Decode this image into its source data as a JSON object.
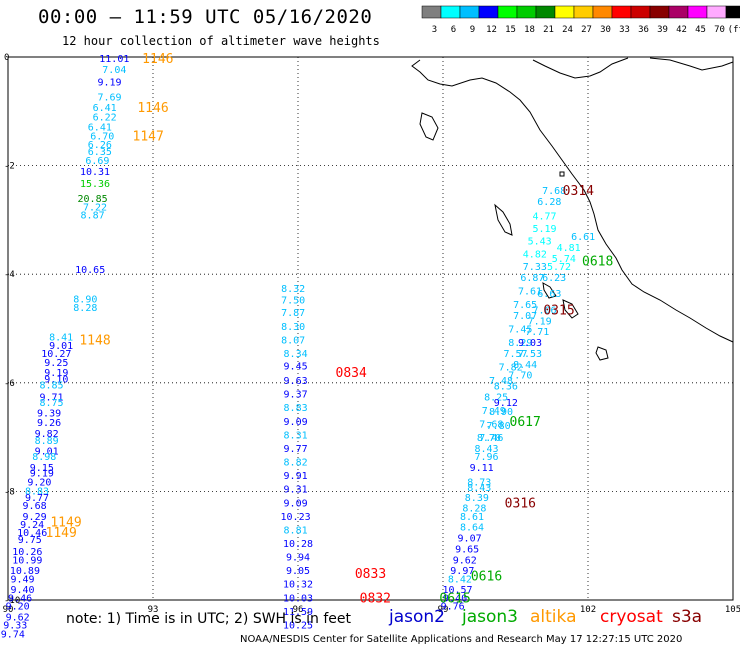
{
  "title": "00:00 — 11:59 UTC 05/16/2020",
  "subtitle": "12 hour collection of altimeter wave heights",
  "note": "note: 1) Time is in UTC; 2) SWH is in feet",
  "credit": "NOAA/NESDIS Center for Satellite Applications and Research   May 17 12:27:15 UTC 2020",
  "color_scale": {
    "labels": [
      "3",
      "6",
      "9",
      "12",
      "15",
      "18",
      "21",
      "24",
      "27",
      "30",
      "33",
      "36",
      "39",
      "42",
      "45",
      "70",
      "(ft)"
    ],
    "colors": [
      "#7f7f7f",
      "#00ffff",
      "#00bfff",
      "#0000ff",
      "#00ff00",
      "#00cc00",
      "#008800",
      "#ffff00",
      "#ffcc00",
      "#ff8800",
      "#ff0000",
      "#cc0000",
      "#880000",
      "#aa0066",
      "#ff00ff",
      "#ffaaff",
      "#000000"
    ]
  },
  "axes": {
    "x_ticks": [
      "90",
      "93",
      "96",
      "99",
      "102",
      "105"
    ],
    "y_ticks": [
      "0",
      "-2",
      "-4",
      "-6",
      "-8",
      "-10"
    ]
  },
  "satellites": [
    {
      "name": "jason2",
      "color": "#0000cc"
    },
    {
      "name": "jason3",
      "color": "#00aa00"
    },
    {
      "name": "altika",
      "color": "#ff9900"
    },
    {
      "name": "cryosat",
      "color": "#ff0000"
    },
    {
      "name": "s3a",
      "color": "#880000"
    }
  ],
  "time_labels": [
    {
      "text": "1146",
      "lon": 93.1,
      "lat": -0.02,
      "color": "#ff9900"
    },
    {
      "text": "1146",
      "lon": 93.0,
      "lat": -0.92,
      "color": "#ff9900"
    },
    {
      "text": "1147",
      "lon": 92.9,
      "lat": -1.45,
      "color": "#ff9900"
    },
    {
      "text": "1148",
      "lon": 91.8,
      "lat": -5.2,
      "color": "#ff9900"
    },
    {
      "text": "1149",
      "lon": 91.2,
      "lat": -8.55,
      "color": "#ff9900"
    },
    {
      "text": "1149",
      "lon": 91.1,
      "lat": -8.75,
      "color": "#ff9900"
    },
    {
      "text": "0314",
      "lon": 101.8,
      "lat": -2.45,
      "color": "#880000"
    },
    {
      "text": "0315",
      "lon": 101.4,
      "lat": -4.65,
      "color": "#880000"
    },
    {
      "text": "0316",
      "lon": 100.6,
      "lat": -8.2,
      "color": "#880000"
    },
    {
      "text": "0618",
      "lon": 102.2,
      "lat": -3.75,
      "color": "#00aa00"
    },
    {
      "text": "0617",
      "lon": 100.7,
      "lat": -6.7,
      "color": "#00aa00"
    },
    {
      "text": "0616",
      "lon": 99.9,
      "lat": -9.55,
      "color": "#00aa00"
    },
    {
      "text": "0615",
      "lon": 99.25,
      "lat": -9.95,
      "color": "#00aa00"
    },
    {
      "text": "0834",
      "lon": 97.1,
      "lat": -5.8,
      "color": "#ff0000"
    },
    {
      "text": "0833",
      "lon": 97.5,
      "lat": -9.5,
      "color": "#ff0000"
    },
    {
      "text": "0832",
      "lon": 97.6,
      "lat": -9.95,
      "color": "#ff0000"
    }
  ],
  "tracks": [
    {
      "name": "altika-west",
      "points": [
        {
          "v": "11.01",
          "lon": 92.2,
          "lat": -0.02
        },
        {
          "v": "7.04",
          "lon": 92.2,
          "lat": -0.22
        },
        {
          "v": "9.19",
          "lon": 92.1,
          "lat": -0.45
        },
        {
          "v": "7.69",
          "lon": 92.1,
          "lat": -0.73
        },
        {
          "v": "6.41",
          "lon": 92.0,
          "lat": -0.92
        },
        {
          "v": "6.22",
          "lon": 92.0,
          "lat": -1.1
        },
        {
          "v": "6.41",
          "lon": 91.9,
          "lat": -1.28
        },
        {
          "v": "6.70",
          "lon": 91.95,
          "lat": -1.45
        },
        {
          "v": "6.26",
          "lon": 91.9,
          "lat": -1.6
        },
        {
          "v": "6.35",
          "lon": 91.9,
          "lat": -1.73
        },
        {
          "v": "6.69",
          "lon": 91.85,
          "lat": -1.9
        },
        {
          "v": "10.31",
          "lon": 91.8,
          "lat": -2.1
        },
        {
          "v": "15.36",
          "lon": 91.8,
          "lat": -2.32
        },
        {
          "v": "20.85",
          "lon": 91.75,
          "lat": -2.6
        },
        {
          "v": "7.22",
          "lon": 91.8,
          "lat": -2.75
        },
        {
          "v": "8.87",
          "lon": 91.75,
          "lat": -2.9
        },
        {
          "v": "10.65",
          "lon": 91.7,
          "lat": -3.9
        },
        {
          "v": "8.90",
          "lon": 91.6,
          "lat": -4.45
        },
        {
          "v": "8.28",
          "lon": 91.6,
          "lat": -4.6
        },
        {
          "v": "8.41",
          "lon": 91.1,
          "lat": -5.15
        },
        {
          "v": "9.01",
          "lon": 91.1,
          "lat": -5.3
        },
        {
          "v": "10.27",
          "lon": 91.0,
          "lat": -5.45
        },
        {
          "v": "9.25",
          "lon": 91.0,
          "lat": -5.62
        },
        {
          "v": "9.19",
          "lon": 91.0,
          "lat": -5.8
        },
        {
          "v": "9.10",
          "lon": 91.0,
          "lat": -5.92
        },
        {
          "v": "8.85",
          "lon": 90.9,
          "lat": -6.03
        },
        {
          "v": "9.71",
          "lon": 90.9,
          "lat": -6.25
        },
        {
          "v": "8.75",
          "lon": 90.9,
          "lat": -6.35
        },
        {
          "v": "9.39",
          "lon": 90.85,
          "lat": -6.55
        },
        {
          "v": "9.26",
          "lon": 90.85,
          "lat": -6.72
        },
        {
          "v": "9.82",
          "lon": 90.8,
          "lat": -6.92
        },
        {
          "v": "8.89",
          "lon": 90.8,
          "lat": -7.05
        },
        {
          "v": "9.01",
          "lon": 90.8,
          "lat": -7.25
        },
        {
          "v": "8.98",
          "lon": 90.75,
          "lat": -7.35
        },
        {
          "v": "9.15",
          "lon": 90.7,
          "lat": -7.55
        },
        {
          "v": "9.19",
          "lon": 90.7,
          "lat": -7.65
        },
        {
          "v": "9.20",
          "lon": 90.65,
          "lat": -7.82
        },
        {
          "v": "8.83",
          "lon": 90.6,
          "lat": -7.98
        },
        {
          "v": "9.77",
          "lon": 90.6,
          "lat": -8.1
        },
        {
          "v": "9.68",
          "lon": 90.55,
          "lat": -8.25
        },
        {
          "v": "9.29",
          "lon": 90.55,
          "lat": -8.45
        },
        {
          "v": "9.24",
          "lon": 90.5,
          "lat": -8.6
        },
        {
          "v": "10.46",
          "lon": 90.5,
          "lat": -8.75
        },
        {
          "v": "9.75",
          "lon": 90.45,
          "lat": -8.88
        },
        {
          "v": "10.26",
          "lon": 90.4,
          "lat": -9.1
        },
        {
          "v": "10.99",
          "lon": 90.4,
          "lat": -9.25
        },
        {
          "v": "10.89",
          "lon": 90.35,
          "lat": -9.45
        },
        {
          "v": "9.49",
          "lon": 90.3,
          "lat": -9.6
        },
        {
          "v": "9.40",
          "lon": 90.3,
          "lat": -9.8
        },
        {
          "v": "9.46",
          "lon": 90.25,
          "lat": -9.95
        },
        {
          "v": "9.20",
          "lon": 90.2,
          "lat": -10.1
        },
        {
          "v": "9.62",
          "lon": 90.2,
          "lat": -10.3
        },
        {
          "v": "9.33",
          "lon": 90.15,
          "lat": -10.45
        },
        {
          "v": "9.74",
          "lon": 90.1,
          "lat": -10.62
        }
      ]
    },
    {
      "name": "cryosat-mid",
      "points": [
        {
          "v": "8.32",
          "lon": 95.9,
          "lat": -4.25
        },
        {
          "v": "7.50",
          "lon": 95.9,
          "lat": -4.47
        },
        {
          "v": "7.87",
          "lon": 95.9,
          "lat": -4.7
        },
        {
          "v": "8.30",
          "lon": 95.9,
          "lat": -4.95
        },
        {
          "v": "8.07",
          "lon": 95.9,
          "lat": -5.2
        },
        {
          "v": "8.34",
          "lon": 95.95,
          "lat": -5.45
        },
        {
          "v": "9.45",
          "lon": 95.95,
          "lat": -5.68
        },
        {
          "v": "9.63",
          "lon": 95.95,
          "lat": -5.95
        },
        {
          "v": "9.37",
          "lon": 95.95,
          "lat": -6.2
        },
        {
          "v": "8.83",
          "lon": 95.95,
          "lat": -6.45
        },
        {
          "v": "9.09",
          "lon": 95.95,
          "lat": -6.7
        },
        {
          "v": "8.31",
          "lon": 95.95,
          "lat": -6.95
        },
        {
          "v": "9.77",
          "lon": 95.95,
          "lat": -7.2
        },
        {
          "v": "8.82",
          "lon": 95.95,
          "lat": -7.45
        },
        {
          "v": "9.91",
          "lon": 95.95,
          "lat": -7.7
        },
        {
          "v": "9.31",
          "lon": 95.95,
          "lat": -7.95
        },
        {
          "v": "9.09",
          "lon": 95.95,
          "lat": -8.2
        },
        {
          "v": "10.23",
          "lon": 95.95,
          "lat": -8.45
        },
        {
          "v": "8.81",
          "lon": 95.95,
          "lat": -8.7
        },
        {
          "v": "10.28",
          "lon": 96.0,
          "lat": -8.95
        },
        {
          "v": "9.94",
          "lon": 96.0,
          "lat": -9.2
        },
        {
          "v": "9.05",
          "lon": 96.0,
          "lat": -9.45
        },
        {
          "v": "10.32",
          "lon": 96.0,
          "lat": -9.7
        },
        {
          "v": "10.03",
          "lon": 96.0,
          "lat": -9.95
        },
        {
          "v": "11.59",
          "lon": 96.0,
          "lat": -10.2
        },
        {
          "v": "10.25",
          "lon": 96.0,
          "lat": -10.45
        }
      ]
    },
    {
      "name": "jason3-east",
      "points": [
        {
          "v": "7.68",
          "lon": 101.3,
          "lat": -2.45
        },
        {
          "v": "6.28",
          "lon": 101.2,
          "lat": -2.65
        },
        {
          "v": "4.77",
          "lon": 101.1,
          "lat": -2.92
        },
        {
          "v": "5.19",
          "lon": 101.1,
          "lat": -3.15
        },
        {
          "v": "6.61",
          "lon": 101.9,
          "lat": -3.3
        },
        {
          "v": "5.43",
          "lon": 101.0,
          "lat": -3.38
        },
        {
          "v": "4.81",
          "lon": 101.6,
          "lat": -3.5
        },
        {
          "v": "4.82",
          "lon": 100.9,
          "lat": -3.62
        },
        {
          "v": "5.74",
          "lon": 101.5,
          "lat": -3.7
        },
        {
          "v": "7.33",
          "lon": 100.9,
          "lat": -3.85
        },
        {
          "v": "5.72",
          "lon": 101.4,
          "lat": -3.85
        },
        {
          "v": "6.87",
          "lon": 100.85,
          "lat": -4.05
        },
        {
          "v": "6.23",
          "lon": 101.3,
          "lat": -4.05
        },
        {
          "v": "7.61",
          "lon": 100.8,
          "lat": -4.3
        },
        {
          "v": "6.63",
          "lon": 101.2,
          "lat": -4.35
        },
        {
          "v": "7.65",
          "lon": 100.7,
          "lat": -4.55
        },
        {
          "v": "7.06",
          "lon": 101.1,
          "lat": -4.65
        },
        {
          "v": "7.07",
          "lon": 100.7,
          "lat": -4.75
        },
        {
          "v": "7.19",
          "lon": 101.0,
          "lat": -4.85
        },
        {
          "v": "7.45",
          "lon": 100.6,
          "lat": -5.0
        },
        {
          "v": "7.71",
          "lon": 100.95,
          "lat": -5.05
        },
        {
          "v": "8.29",
          "lon": 100.6,
          "lat": -5.25
        },
        {
          "v": "9.03",
          "lon": 100.8,
          "lat": -5.25
        },
        {
          "v": "7.57",
          "lon": 100.5,
          "lat": -5.45
        },
        {
          "v": "7.53",
          "lon": 100.8,
          "lat": -5.45
        },
        {
          "v": "7.82",
          "lon": 100.4,
          "lat": -5.7
        },
        {
          "v": "8.44",
          "lon": 100.7,
          "lat": -5.65
        },
        {
          "v": "7.70",
          "lon": 100.6,
          "lat": -5.85
        },
        {
          "v": "7.48",
          "lon": 100.2,
          "lat": -5.95
        },
        {
          "v": "8.36",
          "lon": 100.3,
          "lat": -6.05
        },
        {
          "v": "8.25",
          "lon": 100.1,
          "lat": -6.25
        },
        {
          "v": "9.12",
          "lon": 100.3,
          "lat": -6.35
        },
        {
          "v": "7.49",
          "lon": 100.05,
          "lat": -6.5
        },
        {
          "v": "8.90",
          "lon": 100.2,
          "lat": -6.52
        },
        {
          "v": "7.68",
          "lon": 100.0,
          "lat": -6.75
        },
        {
          "v": "7.80",
          "lon": 100.15,
          "lat": -6.78
        },
        {
          "v": "8.70",
          "lon": 99.95,
          "lat": -7.0
        },
        {
          "v": "7.46",
          "lon": 100.0,
          "lat": -7.0
        },
        {
          "v": "8.43",
          "lon": 99.9,
          "lat": -7.2
        },
        {
          "v": "7.96",
          "lon": 99.9,
          "lat": -7.35
        },
        {
          "v": "9.11",
          "lon": 99.8,
          "lat": -7.55
        },
        {
          "v": "8.73",
          "lon": 99.75,
          "lat": -7.82
        },
        {
          "v": "8.43",
          "lon": 99.75,
          "lat": -7.92
        },
        {
          "v": "8.39",
          "lon": 99.7,
          "lat": -8.1
        },
        {
          "v": "8.28",
          "lon": 99.65,
          "lat": -8.3
        },
        {
          "v": "8.61",
          "lon": 99.6,
          "lat": -8.45
        },
        {
          "v": "8.64",
          "lon": 99.6,
          "lat": -8.65
        },
        {
          "v": "9.07",
          "lon": 99.55,
          "lat": -8.85
        },
        {
          "v": "9.65",
          "lon": 99.5,
          "lat": -9.05
        },
        {
          "v": "9.62",
          "lon": 99.45,
          "lat": -9.25
        },
        {
          "v": "9.97",
          "lon": 99.4,
          "lat": -9.45
        },
        {
          "v": "8.42",
          "lon": 99.35,
          "lat": -9.6
        },
        {
          "v": "10.57",
          "lon": 99.3,
          "lat": -9.8
        },
        {
          "v": "9.40",
          "lon": 99.25,
          "lat": -9.95
        },
        {
          "v": "9.76",
          "lon": 99.2,
          "lat": -10.1
        }
      ]
    }
  ]
}
